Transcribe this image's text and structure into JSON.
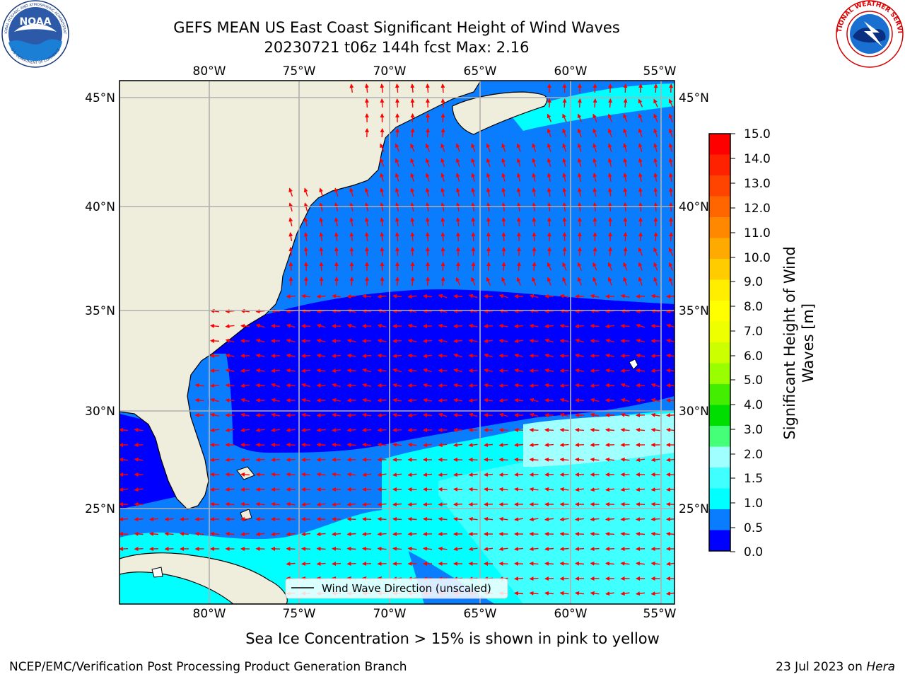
{
  "title": {
    "line1": "GEFS MEAN US East Coast Significant Height of Wind Waves",
    "line2": "20230721 t06z 144h fcst   Max: 2.16"
  },
  "map": {
    "lon_ticks": [
      "80°W",
      "75°W",
      "70°W",
      "65°W",
      "60°W",
      "55°W"
    ],
    "lat_ticks": [
      "45°N",
      "40°N",
      "35°N",
      "30°N",
      "25°N"
    ],
    "legend_label": "Wind Wave Direction (unscaled)",
    "colors": {
      "land": "#efeedc",
      "band_0_0p5": "#0000ff",
      "band_0p5_1": "#0a7dff",
      "band_1_1p5": "#00ffff",
      "band_1p5_2": "#40ffff",
      "band_2_3": "#a0ffff",
      "arrows": "#ff0000",
      "grid": "#b0b0b0"
    }
  },
  "colorbar": {
    "label_line1": "Significant Height of Wind",
    "label_line2": "Waves [m]",
    "ticks": [
      "15.0",
      "14.0",
      "13.0",
      "12.0",
      "11.0",
      "10.0",
      "9.0",
      "8.0",
      "7.0",
      "6.0",
      "5.0",
      "4.0",
      "3.0",
      "2.0",
      "1.5",
      "1.0",
      "0.5",
      "0.0"
    ],
    "segment_colors_top_to_bottom": [
      "#ff0000",
      "#ff2200",
      "#ff4400",
      "#ff6600",
      "#ff8800",
      "#ffaa00",
      "#ffcc00",
      "#ffee00",
      "#ffff00",
      "#eeff00",
      "#ccff00",
      "#99ff00",
      "#44ee00",
      "#00dd00",
      "#44ff77",
      "#a0ffff",
      "#40ffff",
      "#00ffff",
      "#0a7dff",
      "#0000ff"
    ]
  },
  "logos": {
    "noaa_badge": "NOAA",
    "noaa_ring": "NATIONAL OCEANIC AND ATMOSPHERIC ADMINISTRATION",
    "noaa_ring_bottom": "U.S. DEPARTMENT OF COMMERCE",
    "nws_ring": "NATIONAL WEATHER SERVICE"
  },
  "footer": {
    "note": "Sea Ice Concentration > 15% is shown in pink to yellow",
    "left": "NCEP/EMC/Verification Post Processing Product Generation Branch",
    "right_date": "23 Jul 2023 on ",
    "right_host": "Hera"
  }
}
